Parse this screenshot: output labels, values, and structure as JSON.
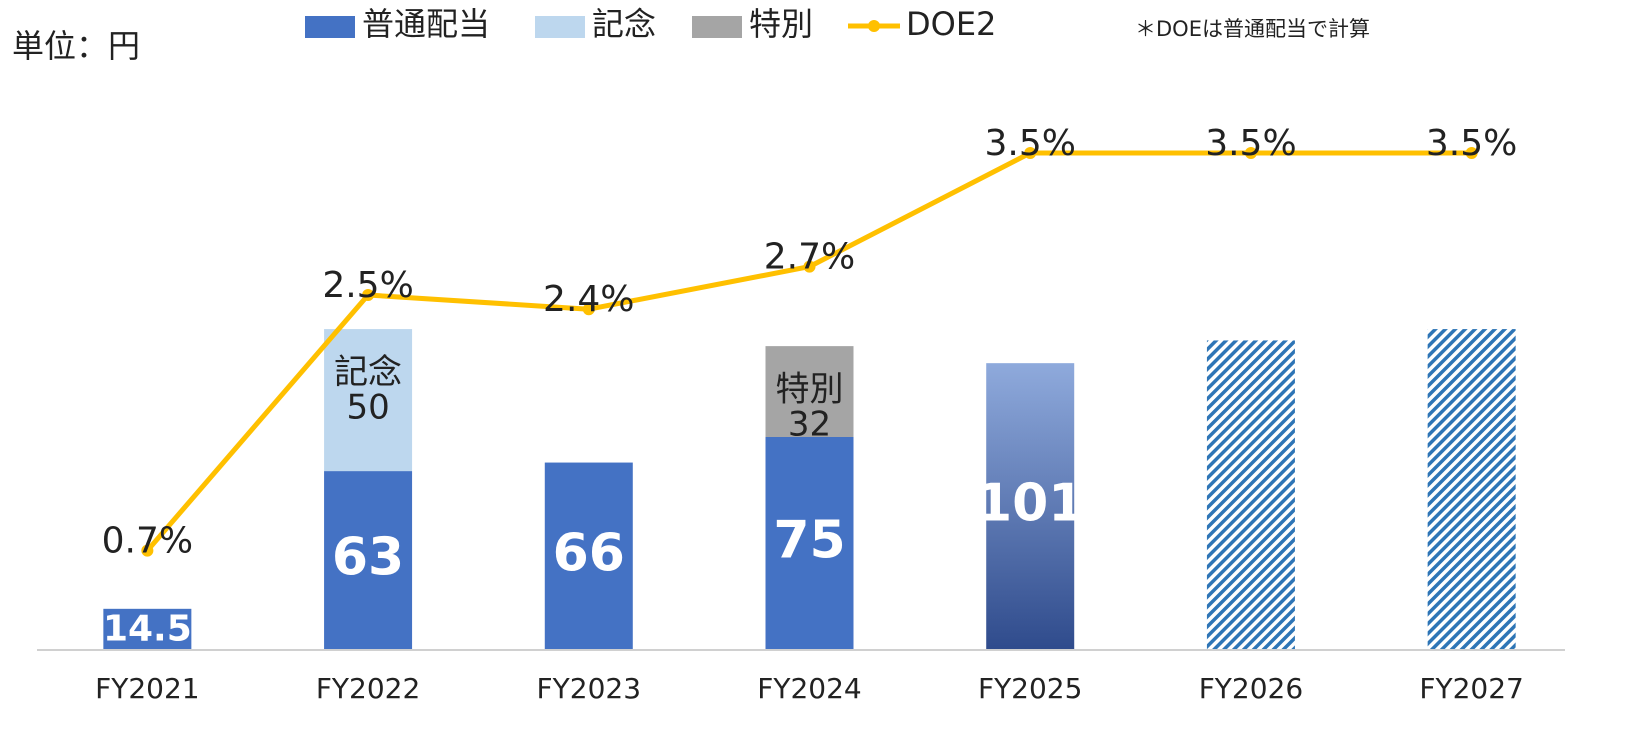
{
  "chart_data": {
    "type": "bar",
    "unit_label": "単位：円",
    "note": "＊DOEは普通配当で計算",
    "categories": [
      "FY2021",
      "FY2022",
      "FY2023",
      "FY2024",
      "FY2025",
      "FY2026",
      "FY2027"
    ],
    "bar_styles": [
      "solid",
      "solid",
      "solid",
      "solid",
      "gradient",
      "hatched",
      "hatched"
    ],
    "stacked": true,
    "series": [
      {
        "name": "普通配当",
        "color": "#4472c4",
        "values": [
          14.5,
          63,
          66,
          75,
          101,
          109,
          113
        ]
      },
      {
        "name": "記念",
        "color": "#bdd7ee",
        "values": [
          null,
          50,
          null,
          null,
          null,
          null,
          null
        ]
      },
      {
        "name": "特別",
        "color": "#a5a5a5",
        "values": [
          null,
          null,
          null,
          32,
          null,
          null,
          null
        ]
      },
      {
        "name": "DOE2",
        "color": "#ffc000",
        "type": "line",
        "axis": "y2",
        "values": [
          0.7,
          2.5,
          2.4,
          2.7,
          3.5,
          3.5,
          3.5
        ],
        "value_labels": [
          "0.7%",
          "2.5%",
          "2.4%",
          "2.7%",
          "3.5%",
          "3.5%",
          "3.5%"
        ]
      }
    ],
    "ylim": [
      0,
      200
    ],
    "y2lim": [
      0,
      4
    ]
  }
}
